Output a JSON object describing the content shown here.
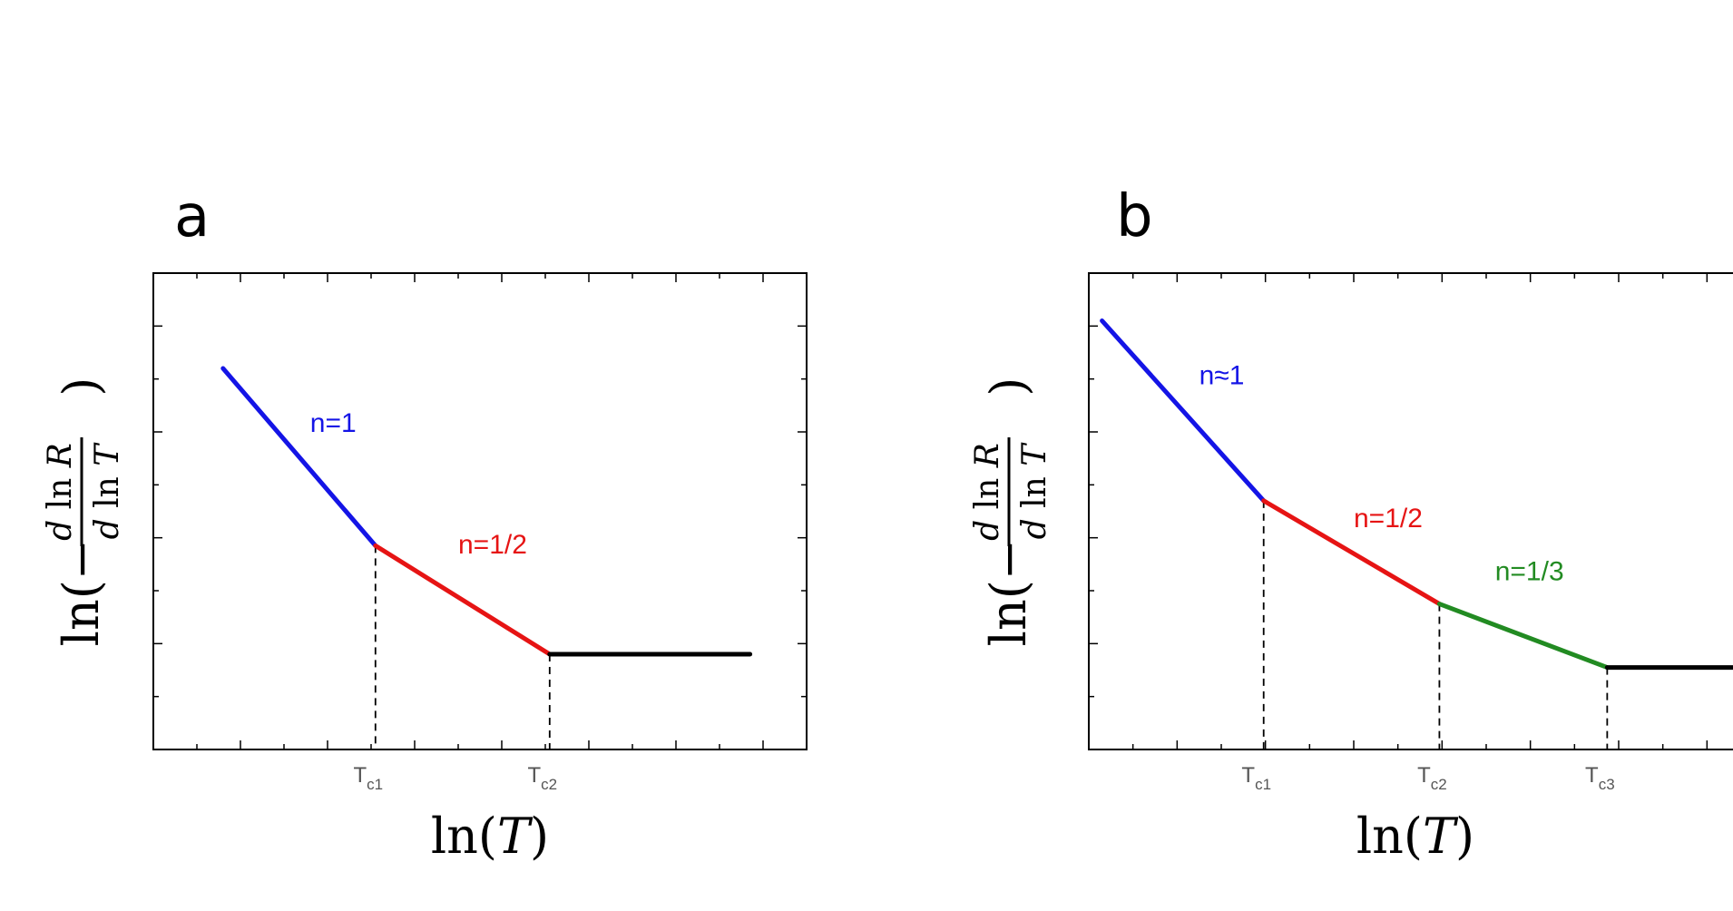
{
  "chart_data": [
    {
      "type": "line",
      "panel": "a",
      "xlabel": "ln(T)",
      "ylabel": "ln(−d ln R / d ln T)",
      "xticks": [
        {
          "x": 2.5,
          "main": "T",
          "sub": "c1"
        },
        {
          "x": 4.5,
          "main": "T",
          "sub": "c2"
        }
      ],
      "series": [
        {
          "name": "n=1",
          "color": "#1414e6",
          "points": [
            [
              0.8,
              7.2
            ],
            [
              2.55,
              3.85
            ]
          ]
        },
        {
          "name": "n=1/2",
          "color": "#e61414",
          "points": [
            [
              2.55,
              3.85
            ],
            [
              4.55,
              1.8
            ]
          ]
        },
        {
          "name": "",
          "color": "#000000",
          "points": [
            [
              4.55,
              1.8
            ],
            [
              6.85,
              1.8
            ]
          ]
        }
      ],
      "annotations": [
        {
          "text": "n=1",
          "color": "#1414e6",
          "x": 1.8,
          "y": 6.0
        },
        {
          "text": "n=1/2",
          "color": "#e61414",
          "x": 3.5,
          "y": 3.7
        }
      ]
    },
    {
      "type": "line",
      "panel": "b",
      "xlabel": "ln(T)",
      "ylabel": "ln(−d ln R / d ln T)",
      "xticks": [
        {
          "x": 2.0,
          "main": "T",
          "sub": "c1"
        },
        {
          "x": 4.0,
          "main": "T",
          "sub": "c2"
        },
        {
          "x": 5.9,
          "main": "T",
          "sub": "c3"
        }
      ],
      "series": [
        {
          "name": "n≈1",
          "color": "#1414e6",
          "points": [
            [
              0.15,
              8.1
            ],
            [
              1.98,
              4.7
            ]
          ]
        },
        {
          "name": "n=1/2",
          "color": "#e61414",
          "points": [
            [
              1.98,
              4.7
            ],
            [
              3.97,
              2.75
            ]
          ]
        },
        {
          "name": "n=1/3",
          "color": "#228b22",
          "points": [
            [
              3.97,
              2.75
            ],
            [
              5.87,
              1.55
            ]
          ]
        },
        {
          "name": "",
          "color": "#000000",
          "points": [
            [
              5.87,
              1.55
            ],
            [
              7.3,
              1.55
            ]
          ]
        }
      ],
      "annotations": [
        {
          "text": "n≈1",
          "color": "#1414e6",
          "x": 1.25,
          "y": 6.9
        },
        {
          "text": "n=1/2",
          "color": "#e61414",
          "x": 3.0,
          "y": 4.2
        },
        {
          "text": "n=1/3",
          "color": "#228b22",
          "x": 4.6,
          "y": 3.2
        }
      ]
    }
  ]
}
